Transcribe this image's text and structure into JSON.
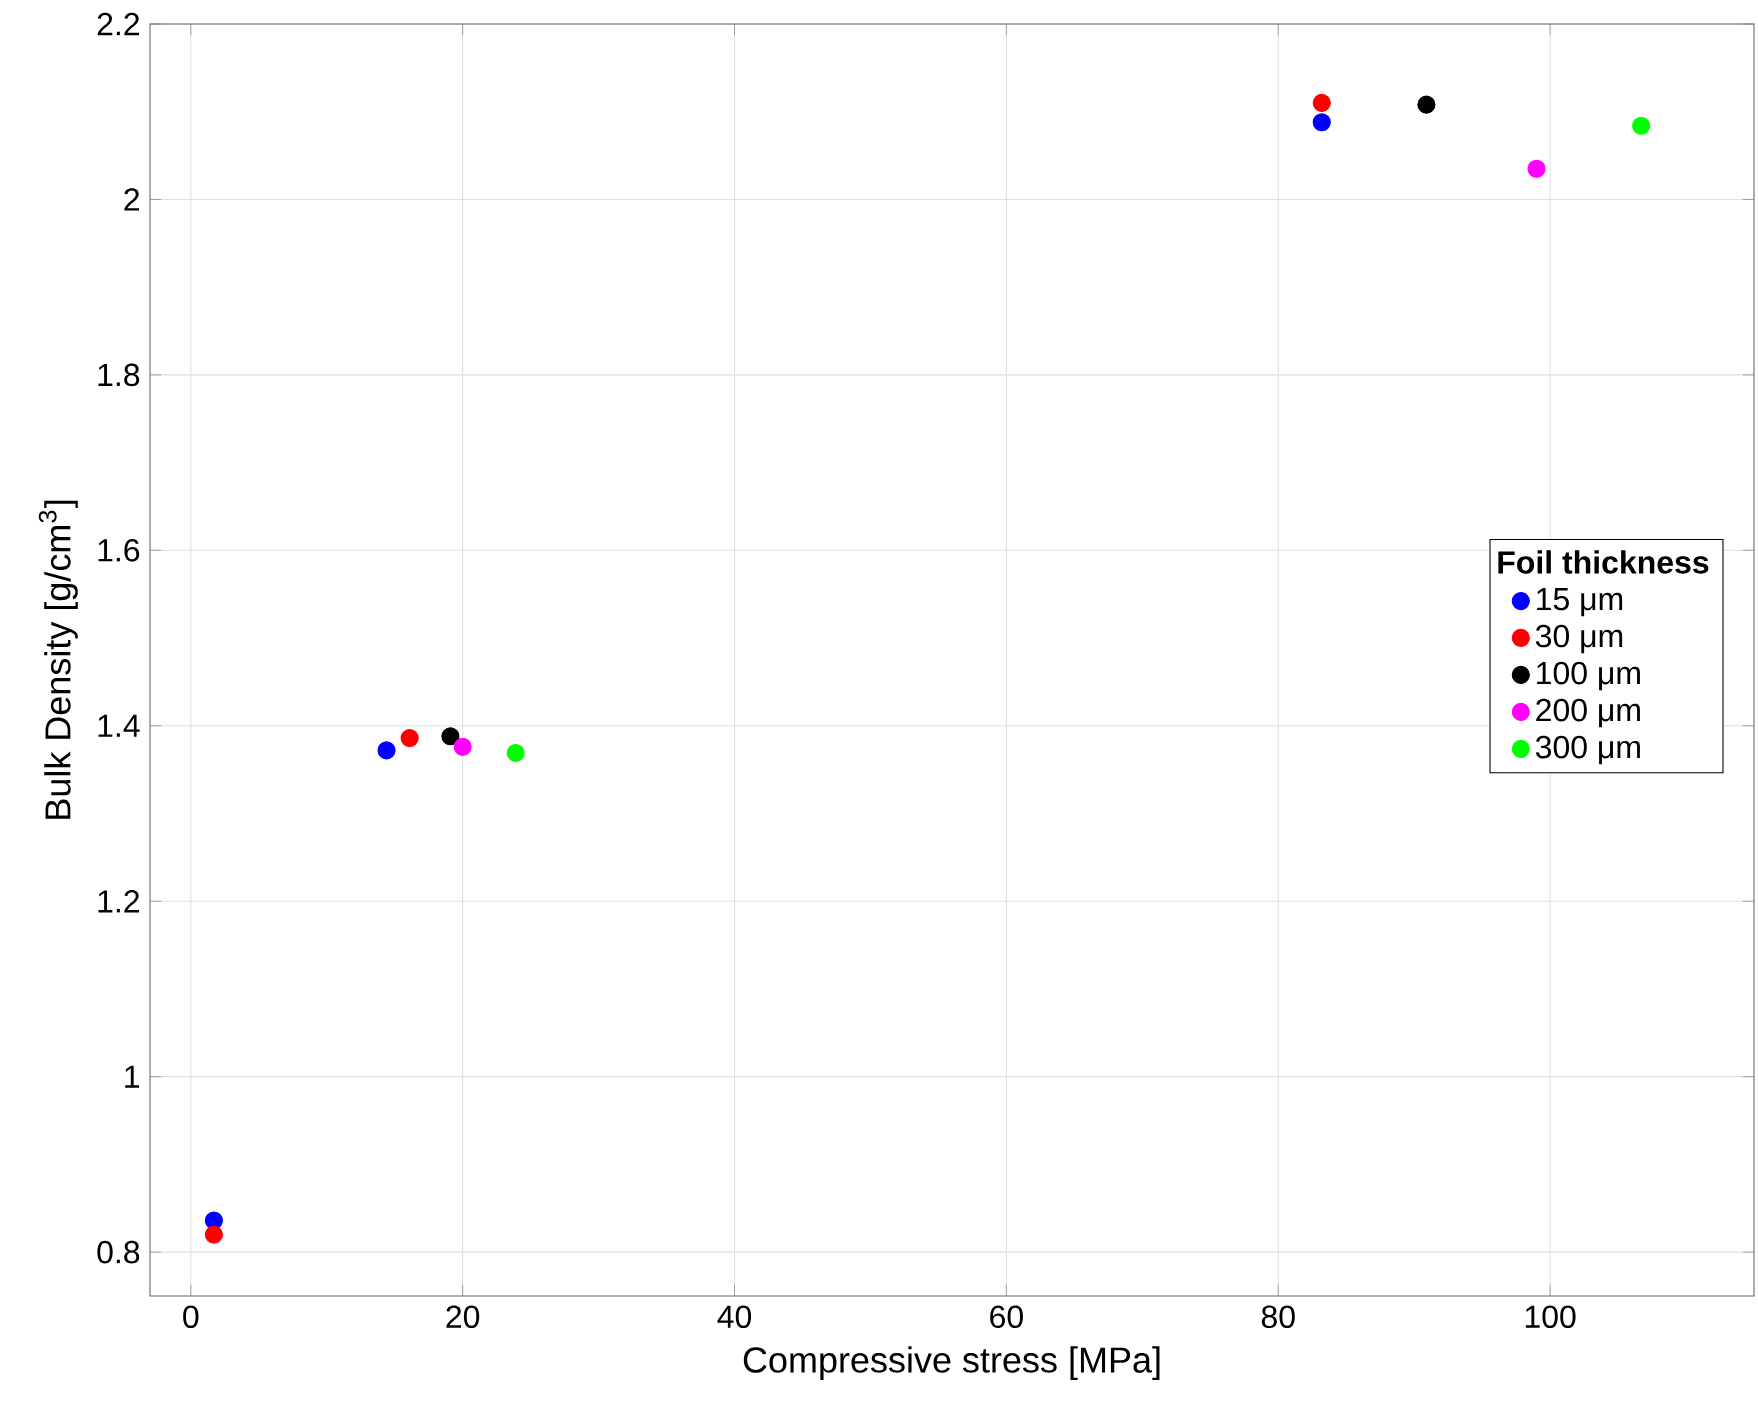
{
  "chart_data": {
    "type": "scatter",
    "xlabel": "Compressive stress [MPa]",
    "ylabel": "Bulk Density [g/cm$^{3}$]",
    "legend_title": "Foil thickness",
    "xlim": [
      -3,
      115
    ],
    "ylim": [
      0.75,
      2.2
    ],
    "xticks": [
      0,
      20,
      40,
      60,
      80,
      100
    ],
    "yticks": [
      0.8,
      1,
      1.2,
      1.4,
      1.6,
      1.8,
      2,
      2.2
    ],
    "grid": true,
    "legend": "right",
    "marker": "circle",
    "series": [
      {
        "name": "15 μm",
        "color": "#0000ff",
        "x": [
          1.7,
          14.4,
          83.2
        ],
        "values": [
          0.836,
          1.372,
          2.088
        ]
      },
      {
        "name": "30 μm",
        "color": "#ff0000",
        "x": [
          1.7,
          16.1,
          83.2
        ],
        "values": [
          0.82,
          1.386,
          2.11
        ]
      },
      {
        "name": "100 μm",
        "color": "#000000",
        "x": [
          19.1,
          90.9
        ],
        "values": [
          1.388,
          2.108
        ]
      },
      {
        "name": "200 μm",
        "color": "#ff00ff",
        "x": [
          20.0,
          99.0
        ],
        "values": [
          1.376,
          2.035
        ]
      },
      {
        "name": "300 μm",
        "color": "#00ff00",
        "x": [
          23.9,
          106.7
        ],
        "values": [
          1.369,
          2.084
        ]
      }
    ]
  }
}
